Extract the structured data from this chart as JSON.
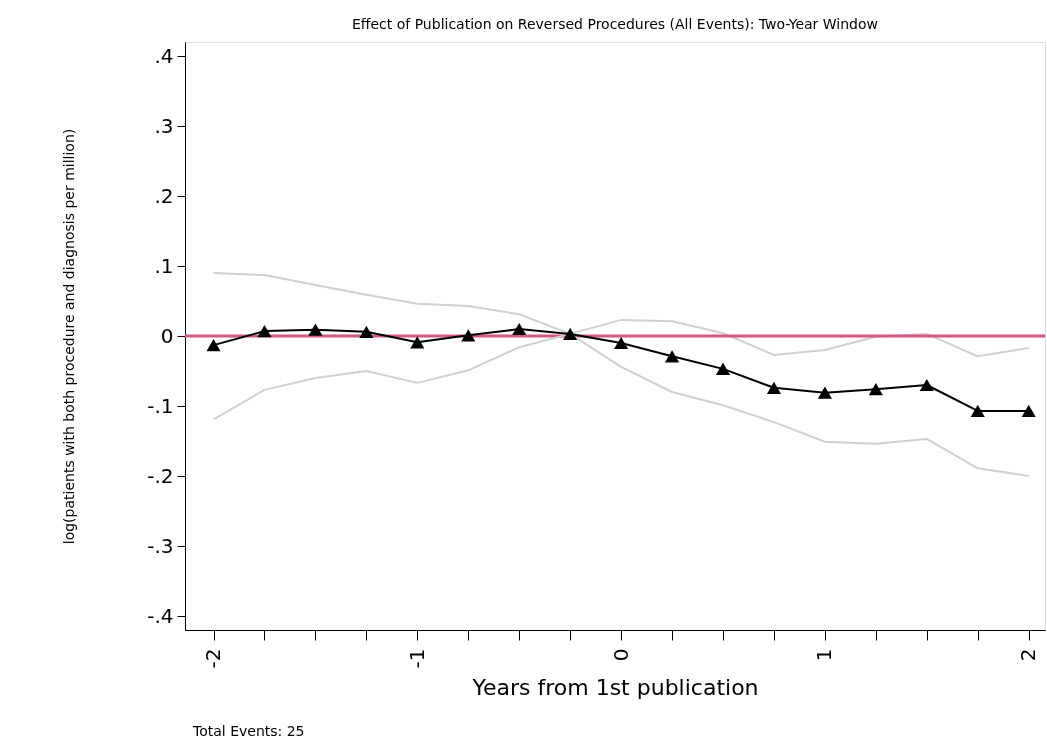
{
  "chart_data": {
    "type": "line",
    "title": "Effect of Publication on Reversed Procedures (All Events): Two-Year Window",
    "xlabel": "Years from 1st publication",
    "ylabel": "log(patients with both procedure and diagnosis per million)",
    "x": [
      -2,
      -1.75,
      -1.5,
      -1.25,
      -1,
      -0.75,
      -0.5,
      -0.25,
      0,
      0.25,
      0.5,
      0.75,
      1,
      1.25,
      1.5,
      1.75,
      2
    ],
    "series": [
      {
        "color": "#d0d0d0",
        "marker": "none",
        "values": [
          0.09,
          0.087,
          0.073,
          0.059,
          0.046,
          0.043,
          0.031,
          0.003,
          0.023,
          0.021,
          0.004,
          -0.027,
          -0.02,
          -0.001,
          0.003,
          -0.029,
          -0.017
        ]
      },
      {
        "color": "#d0d0d0",
        "marker": "none",
        "values": [
          -0.119,
          -0.077,
          -0.06,
          -0.05,
          -0.067,
          -0.049,
          -0.016,
          0.003,
          -0.044,
          -0.08,
          -0.099,
          -0.123,
          -0.151,
          -0.154,
          -0.147,
          -0.189,
          -0.2
        ]
      },
      {
        "color": "#000000",
        "marker": "triangle",
        "values": [
          -0.013,
          0.007,
          0.009,
          0.006,
          -0.009,
          0.001,
          0.01,
          0.003,
          -0.01,
          -0.029,
          -0.047,
          -0.074,
          -0.081,
          -0.076,
          -0.07,
          -0.107,
          -0.107
        ]
      }
    ],
    "xlim": [
      -2.14,
      2.08
    ],
    "xticks": [
      -2,
      {
        "value": -1.75,
        "label": null
      },
      {
        "value": -1.5,
        "label": null
      },
      {
        "value": -1.25,
        "label": null
      },
      -1,
      {
        "value": -0.75,
        "label": null
      },
      {
        "value": -0.5,
        "label": null
      },
      {
        "value": -0.25,
        "label": null
      },
      0,
      {
        "value": 0.25,
        "label": null
      },
      {
        "value": 0.5,
        "label": null
      },
      {
        "value": 0.75,
        "label": null
      },
      1,
      {
        "value": 1.25,
        "label": null
      },
      {
        "value": 1.5,
        "label": null
      },
      {
        "value": 1.75,
        "label": null
      },
      2
    ],
    "ylim": [
      -0.42,
      0.42
    ],
    "yticks": [
      {
        "value": -0.4,
        "label": "-.4"
      },
      {
        "value": -0.3,
        "label": "-.3"
      },
      {
        "value": -0.2,
        "label": "-.2"
      },
      {
        "value": -0.1,
        "label": "-.1"
      },
      0,
      {
        "value": 0.1,
        "label": ".1"
      },
      {
        "value": 0.2,
        "label": ".2"
      },
      {
        "value": 0.3,
        "label": ".3"
      },
      {
        "value": 0.4,
        "label": ".4"
      }
    ],
    "ref_lines": [
      {
        "axis": "y",
        "value": 0,
        "color": "#d4587a"
      }
    ],
    "annotations": [
      "Total Events:  25"
    ],
    "grid": false,
    "line_style": "solid"
  }
}
